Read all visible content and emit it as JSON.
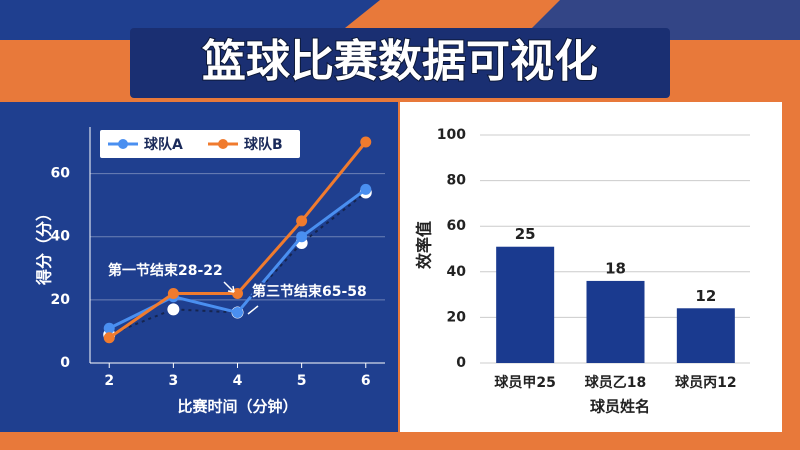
{
  "header": {
    "title": "篮球比赛数据可视化"
  },
  "chart_data": [
    {
      "type": "line",
      "x": [
        2,
        3,
        4,
        5,
        6
      ],
      "xlim": [
        1.7,
        6.3
      ],
      "xticks": [
        2,
        3,
        4,
        5,
        6
      ],
      "ylim": [
        0,
        70
      ],
      "yticks": [
        0,
        20,
        40,
        60
      ],
      "x_label": "比赛时间（分钟）",
      "y_label": "得分（分）",
      "grid": true,
      "legend": "top-left",
      "series": [
        {
          "name": "球队A",
          "color": "#4a8ff0",
          "values": [
            11,
            21,
            16,
            40,
            55
          ]
        },
        {
          "name": "球队B",
          "color": "#f07b2e",
          "values": [
            8,
            22,
            22,
            45,
            70
          ]
        },
        {
          "color": "#16254f",
          "dash": true,
          "marker_color": "#ffffff",
          "values": [
            9,
            17,
            16,
            38,
            54
          ]
        }
      ],
      "annotations": [
        "第一节结束28-22",
        "第三节结束65-58"
      ]
    },
    {
      "type": "bar",
      "categories": [
        "球员甲25",
        "球员乙18",
        "球员丙12"
      ],
      "values": [
        51,
        36,
        24
      ],
      "bar_top_texts": [
        "25",
        "18",
        "12"
      ],
      "color": "#1a3a8f",
      "ylim": [
        0,
        100
      ],
      "yticks": [
        0,
        20,
        40,
        60,
        80,
        100
      ],
      "x_label": "球员姓名",
      "y_label": "效率值",
      "grid": true
    }
  ]
}
